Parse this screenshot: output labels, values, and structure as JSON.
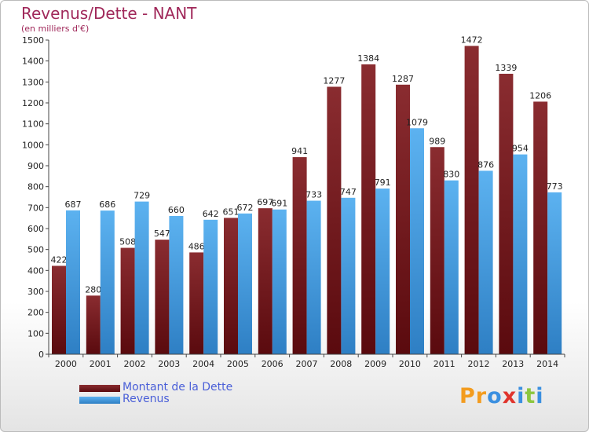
{
  "chart_data": {
    "type": "bar",
    "title": "Revenus/Dette - NANT",
    "subtitle": "(en milliers d'€)",
    "categories": [
      "2000",
      "2001",
      "2002",
      "2003",
      "2004",
      "2005",
      "2006",
      "2007",
      "2008",
      "2009",
      "2010",
      "2011",
      "2012",
      "2013",
      "2014"
    ],
    "series": [
      {
        "name": "Montant de la Dette",
        "color": "#7a1e22",
        "values": [
          422,
          280,
          508,
          547,
          486,
          651,
          697,
          941,
          1277,
          1384,
          1287,
          989,
          1472,
          1339,
          1206
        ]
      },
      {
        "name": "Revenus",
        "color": "#4aa3e8",
        "values": [
          687,
          686,
          729,
          660,
          642,
          672,
          691,
          733,
          747,
          791,
          1079,
          830,
          876,
          954,
          773
        ]
      }
    ],
    "ylim": [
      0,
      1500
    ],
    "yticks": [
      0,
      100,
      200,
      300,
      400,
      500,
      600,
      700,
      800,
      900,
      1000,
      1100,
      1200,
      1300,
      1400,
      1500
    ],
    "xlabel": "",
    "ylabel": "",
    "grid": false,
    "legend_position": "bottom-left"
  },
  "logo": {
    "text": "Proxiti",
    "letters": [
      "P",
      "r",
      "o",
      "x",
      "i",
      "t",
      "i"
    ],
    "colors": [
      "#f39c1f",
      "#f39c1f",
      "#3a8fe0",
      "#e0342c",
      "#3a8fe0",
      "#8cc63f",
      "#3a8fe0"
    ],
    "icon": "proxiti-logo"
  }
}
